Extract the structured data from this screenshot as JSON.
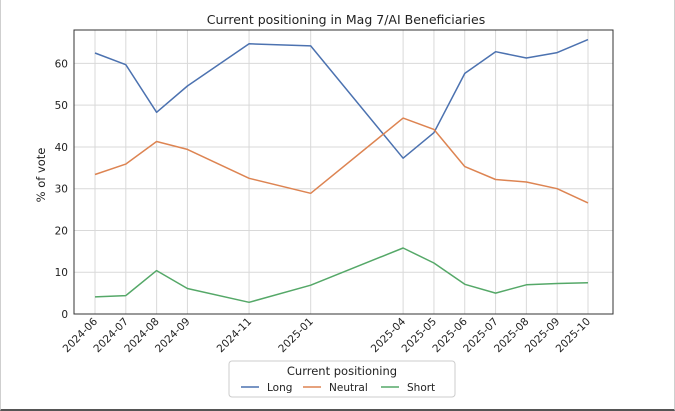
{
  "chart_data": {
    "type": "line",
    "title": "Current positioning in Mag 7/AI Beneficiaries",
    "xlabel": "",
    "ylabel": "% of vote",
    "ylim": [
      0,
      68
    ],
    "yticks": [
      0,
      10,
      20,
      30,
      40,
      50,
      60
    ],
    "grid": true,
    "legend": {
      "title": "Current positioning",
      "position": "bottom-center"
    },
    "categories": [
      "2024-06",
      "2024-07",
      "2024-08",
      "2024-09",
      "2024-11",
      "2025-01",
      "2025-04",
      "2025-05",
      "2025-06",
      "2025-07",
      "2025-08",
      "2025-09",
      "2025-10"
    ],
    "series": [
      {
        "name": "Long",
        "color": "#4c72b0",
        "values": [
          62.5,
          59.7,
          48.3,
          54.6,
          64.7,
          64.2,
          37.3,
          43.4,
          57.6,
          62.8,
          61.3,
          62.6,
          65.7
        ]
      },
      {
        "name": "Neutral",
        "color": "#dd8452",
        "values": [
          33.4,
          35.9,
          41.3,
          39.4,
          32.5,
          28.9,
          46.9,
          44.2,
          35.3,
          32.2,
          31.6,
          30.0,
          26.6
        ]
      },
      {
        "name": "Short",
        "color": "#55a868",
        "values": [
          4.1,
          4.4,
          10.4,
          6.1,
          2.8,
          6.9,
          15.8,
          12.2,
          7.1,
          5.0,
          7.0,
          7.3,
          7.5
        ]
      }
    ]
  }
}
